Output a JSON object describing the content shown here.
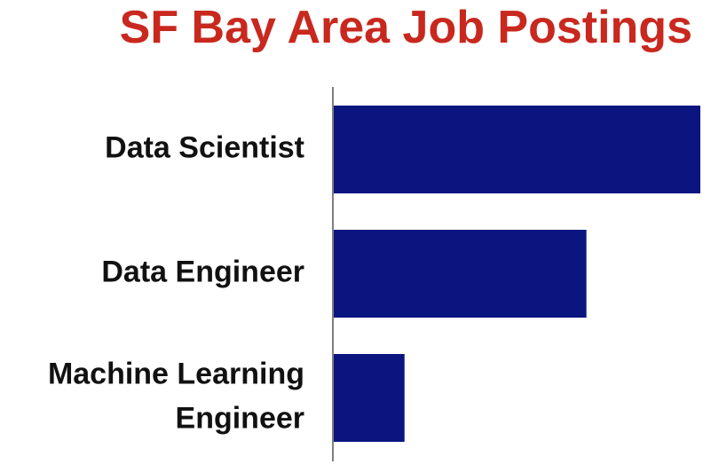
{
  "chart_data": {
    "type": "bar",
    "orientation": "horizontal",
    "title": "SF Bay Area Job Postings",
    "categories": [
      "Data Scientist",
      "Data Engineer",
      "Machine Learning Engineer"
    ],
    "category_lines": [
      [
        "Data Scientist"
      ],
      [
        "Data Engineer"
      ],
      [
        "Machine Learning",
        "Engineer"
      ]
    ],
    "values": [
      100,
      69,
      19.5
    ],
    "xlim": [
      0,
      100
    ],
    "grid": false,
    "legend": "none"
  },
  "colors": {
    "title": "#c8281e",
    "bar": "#0a1580",
    "axis": "#555555",
    "label": "#111111"
  }
}
